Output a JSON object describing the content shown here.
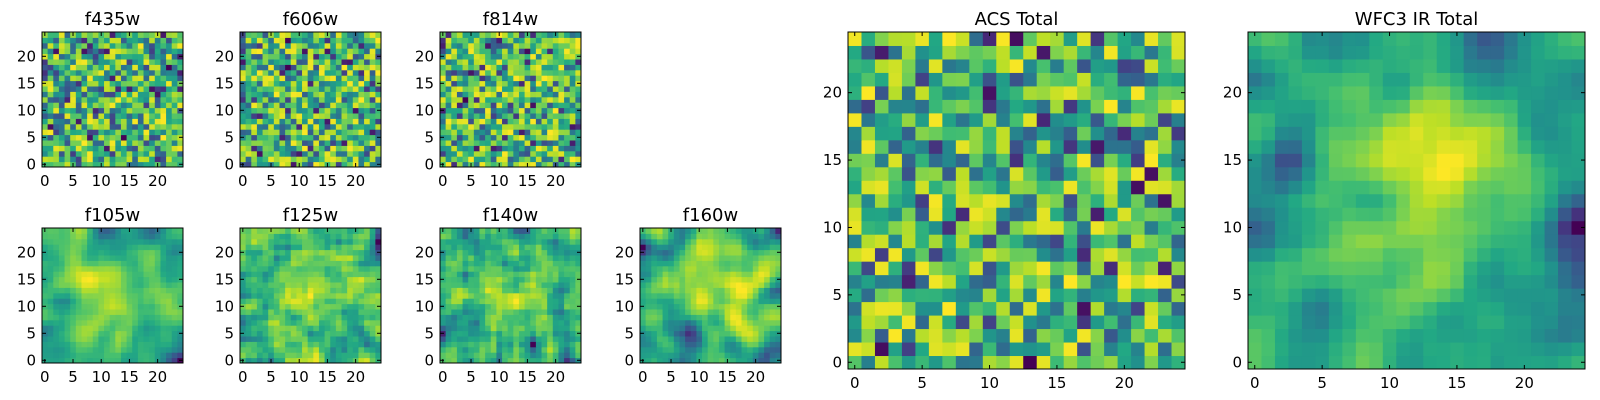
{
  "figure": {
    "description_colormap": "viridis"
  },
  "chart_data": [
    {
      "type": "heatmap",
      "title": "f435w",
      "grid_size": 25,
      "seed": 11,
      "smoothing": 0,
      "blobs": [],
      "x_ticks": [
        0,
        5,
        10,
        15,
        20
      ],
      "y_ticks": [
        0,
        5,
        10,
        15,
        20
      ],
      "xlim": [
        -0.5,
        24.5
      ],
      "ylim": [
        -0.5,
        24.5
      ],
      "value_range": [
        0,
        1
      ]
    },
    {
      "type": "heatmap",
      "title": "f606w",
      "grid_size": 25,
      "seed": 23,
      "smoothing": 0,
      "blobs": [],
      "x_ticks": [
        0,
        5,
        10,
        15,
        20
      ],
      "y_ticks": [
        0,
        5,
        10,
        15,
        20
      ],
      "xlim": [
        -0.5,
        24.5
      ],
      "ylim": [
        -0.5,
        24.5
      ],
      "value_range": [
        0,
        1
      ]
    },
    {
      "type": "heatmap",
      "title": "f814w",
      "grid_size": 25,
      "seed": 37,
      "smoothing": 0,
      "blobs": [],
      "x_ticks": [
        0,
        5,
        10,
        15,
        20
      ],
      "y_ticks": [
        0,
        5,
        10,
        15,
        20
      ],
      "xlim": [
        -0.5,
        24.5
      ],
      "ylim": [
        -0.5,
        24.5
      ],
      "value_range": [
        0,
        1
      ]
    },
    {
      "type": "heatmap",
      "title": "f105w",
      "grid_size": 25,
      "seed": 41,
      "smoothing": 2,
      "blobs": [
        {
          "cx": 12,
          "cy": 12,
          "sigma": 5,
          "amp": 0.25
        }
      ],
      "x_ticks": [
        0,
        5,
        10,
        15,
        20
      ],
      "y_ticks": [
        0,
        5,
        10,
        15,
        20
      ],
      "xlim": [
        -0.5,
        24.5
      ],
      "ylim": [
        -0.5,
        24.5
      ],
      "value_range": [
        0,
        1
      ]
    },
    {
      "type": "heatmap",
      "title": "f125w",
      "grid_size": 25,
      "seed": 53,
      "smoothing": 1,
      "blobs": [
        {
          "cx": 12,
          "cy": 12,
          "sigma": 6,
          "amp": 0.15
        }
      ],
      "x_ticks": [
        0,
        5,
        10,
        15,
        20
      ],
      "y_ticks": [
        0,
        5,
        10,
        15,
        20
      ],
      "xlim": [
        -0.5,
        24.5
      ],
      "ylim": [
        -0.5,
        24.5
      ],
      "value_range": [
        0,
        1
      ]
    },
    {
      "type": "heatmap",
      "title": "f140w",
      "grid_size": 25,
      "seed": 67,
      "smoothing": 1,
      "blobs": [
        {
          "cx": 13,
          "cy": 13,
          "sigma": 5,
          "amp": 0.15
        }
      ],
      "x_ticks": [
        0,
        5,
        10,
        15,
        20
      ],
      "y_ticks": [
        0,
        5,
        10,
        15,
        20
      ],
      "xlim": [
        -0.5,
        24.5
      ],
      "ylim": [
        -0.5,
        24.5
      ],
      "value_range": [
        0,
        1
      ]
    },
    {
      "type": "heatmap",
      "title": "f160w",
      "grid_size": 25,
      "seed": 79,
      "smoothing": 2,
      "blobs": [
        {
          "cx": 13,
          "cy": 14,
          "sigma": 5,
          "amp": 0.2
        }
      ],
      "x_ticks": [
        0,
        5,
        10,
        15,
        20
      ],
      "y_ticks": [
        0,
        5,
        10,
        15,
        20
      ],
      "xlim": [
        -0.5,
        24.5
      ],
      "ylim": [
        -0.5,
        24.5
      ],
      "value_range": [
        0,
        1
      ]
    },
    {
      "type": "heatmap",
      "title": "ACS Total",
      "grid_size": 25,
      "seed": 97,
      "smoothing": 0,
      "blobs": [],
      "x_ticks": [
        0,
        5,
        10,
        15,
        20
      ],
      "y_ticks": [
        0,
        5,
        10,
        15,
        20
      ],
      "xlim": [
        -0.5,
        24.5
      ],
      "ylim": [
        -0.5,
        24.5
      ],
      "value_range": [
        0,
        1
      ]
    },
    {
      "type": "heatmap",
      "title": "WFC3 IR Total",
      "grid_size": 25,
      "seed": 113,
      "smoothing": 2,
      "blobs": [
        {
          "cx": 13,
          "cy": 14,
          "sigma": 4,
          "amp": 0.35
        },
        {
          "cx": 13,
          "cy": 5,
          "sigma": 3,
          "amp": 0.15
        }
      ],
      "x_ticks": [
        0,
        5,
        10,
        15,
        20
      ],
      "y_ticks": [
        0,
        5,
        10,
        15,
        20
      ],
      "xlim": [
        -0.5,
        24.5
      ],
      "ylim": [
        -0.5,
        24.5
      ],
      "value_range": [
        0,
        1
      ]
    }
  ]
}
